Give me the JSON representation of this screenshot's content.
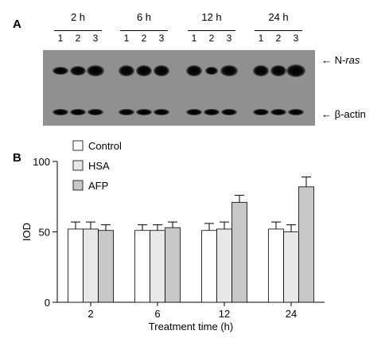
{
  "panel_a": {
    "label": "A",
    "time_points": [
      "2 h",
      "6 h",
      "12 h",
      "24 h"
    ],
    "lanes": [
      "1",
      "2",
      "3"
    ],
    "bands": {
      "upper_prefix": "N-",
      "upper_italic": "ras",
      "lower": "β-actin"
    },
    "arrow": "←"
  },
  "panel_b": {
    "label": "B"
  },
  "chart_data": {
    "type": "bar",
    "categories": [
      "2",
      "6",
      "12",
      "24"
    ],
    "series": [
      {
        "name": "Control",
        "values": [
          52,
          51,
          51,
          52
        ],
        "errors": [
          5,
          4,
          5,
          5
        ],
        "color": "#ffffff"
      },
      {
        "name": "HSA",
        "values": [
          52,
          51,
          52,
          50
        ],
        "errors": [
          5,
          4,
          5,
          5
        ],
        "color": "#e8e8e8"
      },
      {
        "name": "AFP",
        "values": [
          51,
          53,
          71,
          82
        ],
        "errors": [
          4,
          4,
          5,
          7
        ],
        "color": "#c8c8c8"
      }
    ],
    "xlabel": "Treatment time (h)",
    "ylabel": "IOD",
    "ylim": [
      0,
      100
    ],
    "yticks": [
      "0",
      "50",
      "100"
    ],
    "legend_position": "top-left"
  }
}
